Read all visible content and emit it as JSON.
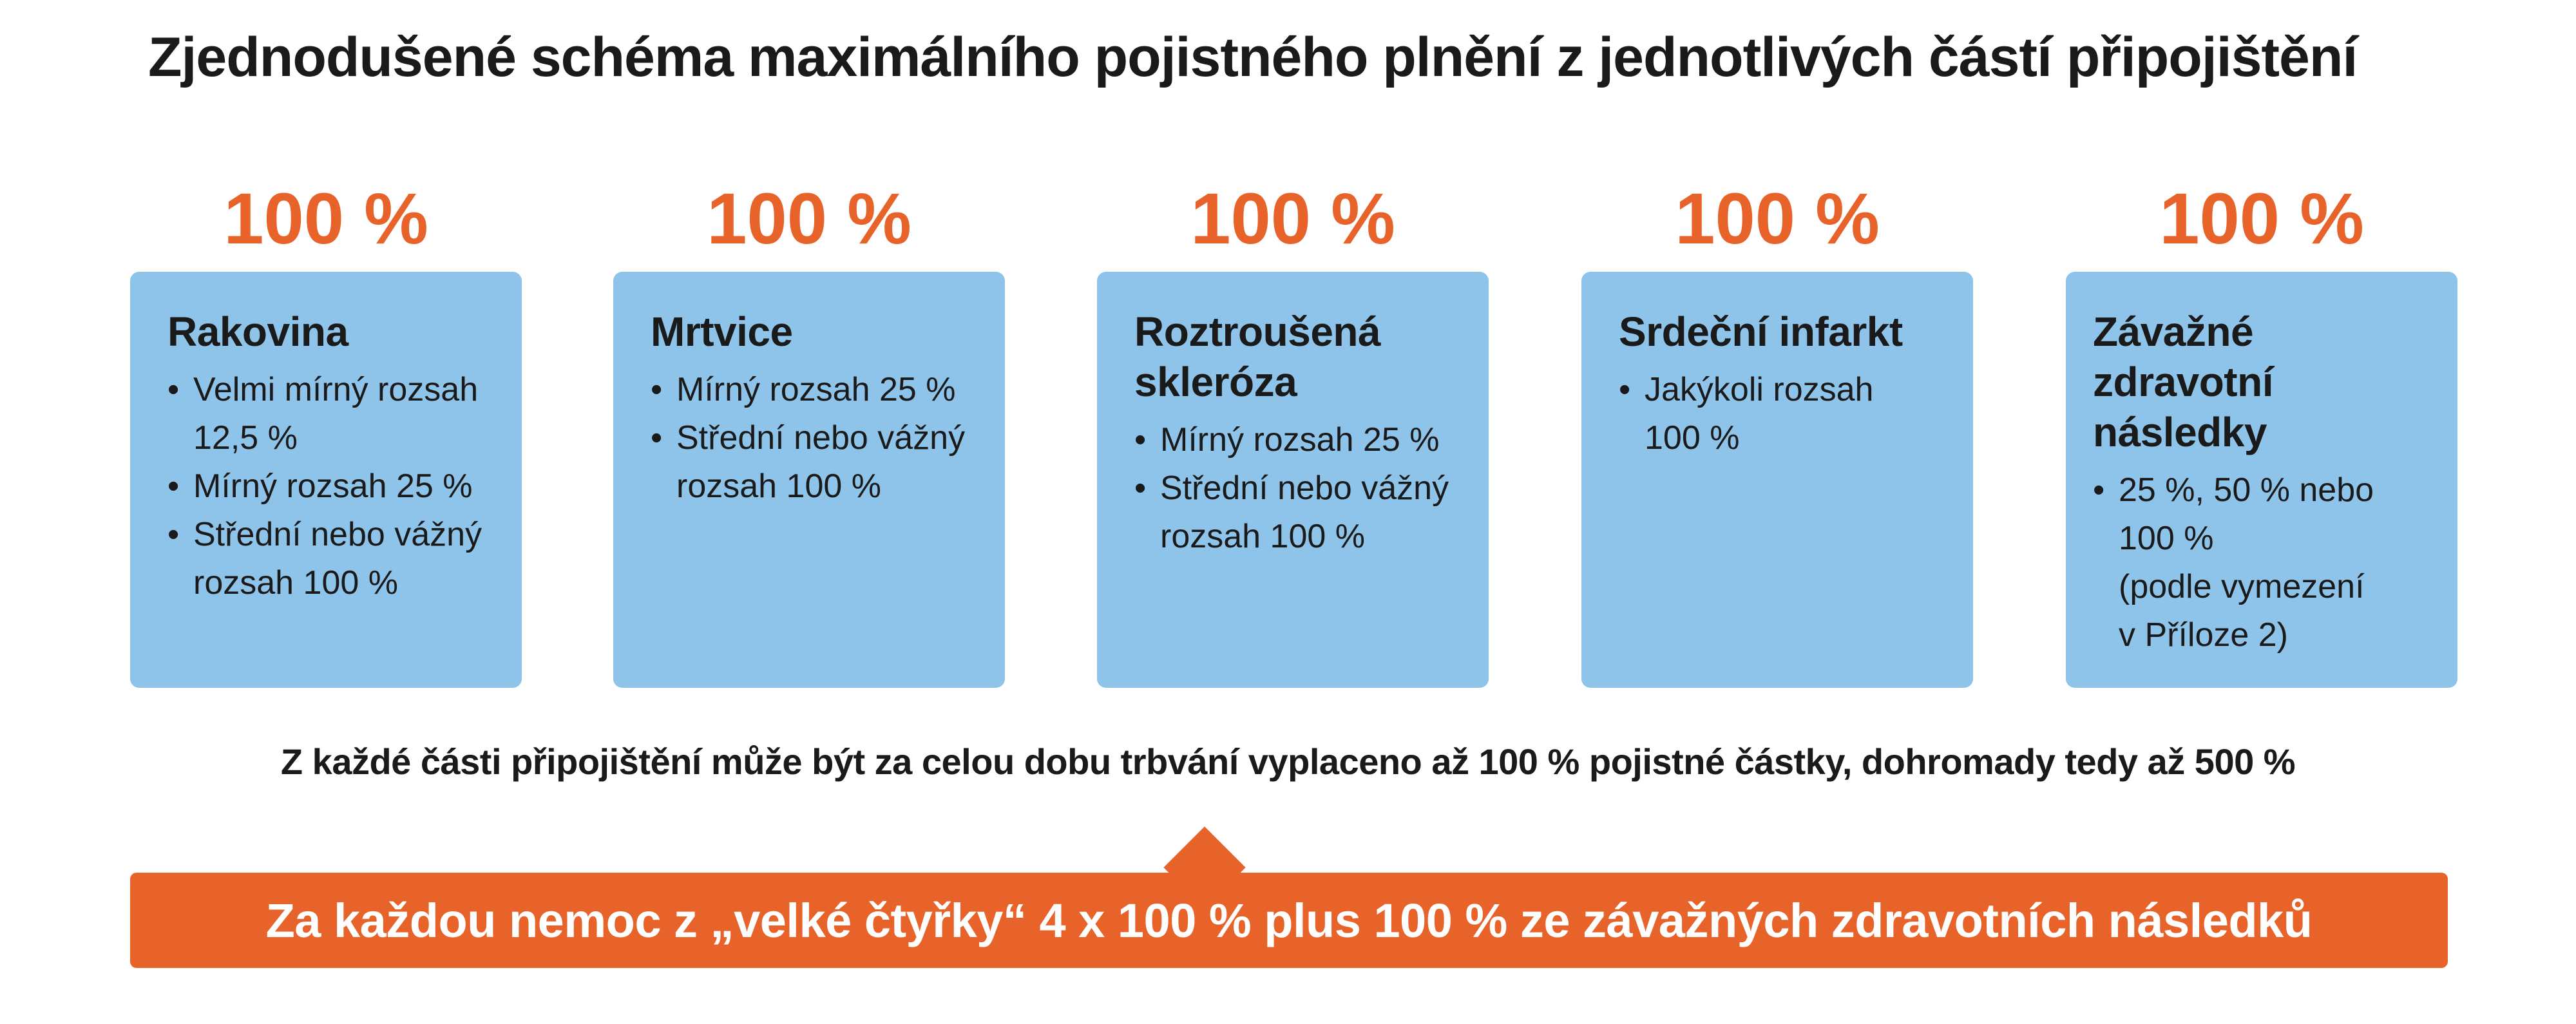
{
  "title": "Zjednodušené schéma maximálního pojistného plnění z jednotlivých částí připojištění",
  "columns": [
    {
      "percent": "100 %",
      "name": "Rakovina",
      "items": [
        {
          "line1": "Velmi mírný rozsah",
          "line2": "12,5 %"
        },
        {
          "line1": "Mírný rozsah 25 %",
          "line2": ""
        },
        {
          "line1": "Střední nebo vážný",
          "line2": "rozsah 100 %"
        }
      ]
    },
    {
      "percent": "100 %",
      "name": "Mrtvice",
      "items": [
        {
          "line1": "Mírný rozsah 25 %",
          "line2": ""
        },
        {
          "line1": "Střední nebo vážný",
          "line2": "rozsah 100 %"
        }
      ]
    },
    {
      "percent": "100 %",
      "name_line1": "Roztroušená",
      "name_line2": "skleróza",
      "items": [
        {
          "line1": "Mírný rozsah 25 %",
          "line2": ""
        },
        {
          "line1": "Střední nebo vážný",
          "line2": "rozsah 100 %"
        }
      ]
    },
    {
      "percent": "100 %",
      "name": "Srdeční infarkt",
      "items": [
        {
          "line1": "Jakýkoli rozsah",
          "line2": "100 %"
        }
      ]
    },
    {
      "percent": "100 %",
      "name_line1": "Závažné zdravotní",
      "name_line2": "následky",
      "items": [
        {
          "line1": "25 %, 50 % nebo",
          "line2": "100 %",
          "line3": "(podle vymezení",
          "line4": "v Příloze 2)"
        }
      ]
    }
  ],
  "bullet": "•",
  "summary": "Z každé části připojištění může být za celou dobu trbvání vyplaceno až 100 % pojistné částky, dohromady tedy až 500 %",
  "banner": "Za každou nemoc z „velké čtyřky“ 4 x 100 % plus 100 % ze závažných zdravotních následků",
  "colors": {
    "accent_orange": "#e8632a",
    "card_blue": "#8fc4ea",
    "text_dark": "#1a1a1a"
  }
}
